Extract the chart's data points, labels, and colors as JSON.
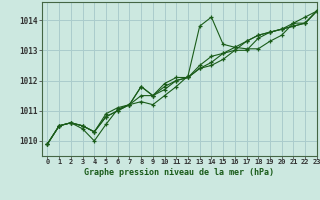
{
  "background_color": "#cce8e0",
  "grid_color": "#aacccc",
  "line_color": "#1a5c1a",
  "title": "Graphe pression niveau de la mer (hPa)",
  "xlim": [
    -0.5,
    23
  ],
  "ylim": [
    1009.5,
    1014.6
  ],
  "xticks": [
    0,
    1,
    2,
    3,
    4,
    5,
    6,
    7,
    8,
    9,
    10,
    11,
    12,
    13,
    14,
    15,
    16,
    17,
    18,
    19,
    20,
    21,
    22,
    23
  ],
  "yticks": [
    1010,
    1011,
    1012,
    1013,
    1014
  ],
  "series": [
    [
      1009.9,
      1010.5,
      1010.6,
      1010.4,
      1010.0,
      1010.55,
      1011.05,
      1011.2,
      1011.3,
      1011.2,
      1011.5,
      1011.8,
      1012.15,
      1013.8,
      1014.1,
      1013.2,
      1013.1,
      1013.05,
      1013.05,
      1013.3,
      1013.5,
      1013.9,
      1014.1,
      1014.3
    ],
    [
      1009.9,
      1010.5,
      1010.6,
      1010.5,
      1010.3,
      1010.9,
      1011.1,
      1011.2,
      1011.8,
      1011.5,
      1011.9,
      1012.1,
      1012.1,
      1012.4,
      1012.5,
      1012.7,
      1013.0,
      1013.3,
      1013.5,
      1013.6,
      1013.7,
      1013.8,
      1013.9,
      1014.3
    ],
    [
      1009.9,
      1010.5,
      1010.6,
      1010.5,
      1010.3,
      1010.8,
      1011.0,
      1011.2,
      1011.8,
      1011.5,
      1011.8,
      1012.0,
      1012.1,
      1012.5,
      1012.8,
      1012.9,
      1013.1,
      1013.3,
      1013.5,
      1013.6,
      1013.7,
      1013.8,
      1013.9,
      1014.3
    ],
    [
      1009.9,
      1010.5,
      1010.6,
      1010.5,
      1010.3,
      1010.8,
      1011.0,
      1011.2,
      1011.5,
      1011.5,
      1011.7,
      1012.0,
      1012.1,
      1012.4,
      1012.6,
      1012.9,
      1013.0,
      1013.0,
      1013.4,
      1013.6,
      1013.7,
      1013.9,
      1013.9,
      1014.3
    ]
  ],
  "tick_fontsize": 5.0,
  "xlabel_fontsize": 6.0,
  "ytick_fontsize": 5.5
}
